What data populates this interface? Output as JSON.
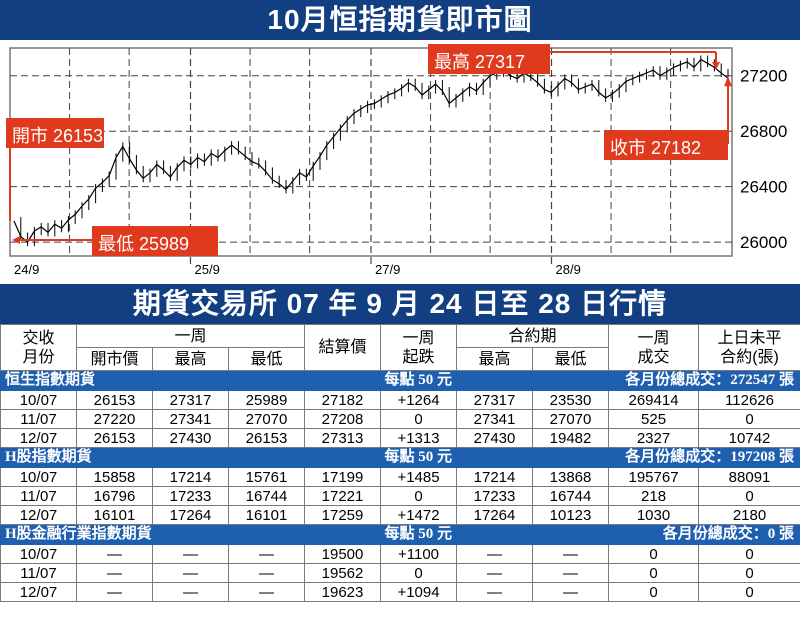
{
  "title": "10月恒指期貨即市圖",
  "table_title": "期貨交易所 07 年 9 月 24 日至 28 日行情",
  "chart_data": {
    "type": "line",
    "title": "10月恒指期貨即市圖",
    "x_ticks": [
      "24/9",
      "25/9",
      "27/9",
      "28/9"
    ],
    "y_ticks": [
      26000,
      26400,
      26800,
      27200
    ],
    "ylim": [
      25900,
      27400
    ],
    "grid": true,
    "series": [
      {
        "values": [
          26153,
          26040,
          26000,
          26080,
          26110,
          26070,
          26130,
          26100,
          26160,
          26200,
          26260,
          26310,
          26390,
          26430,
          26480,
          26610,
          26690,
          26600,
          26520,
          26460,
          26500,
          26560,
          26520,
          26470,
          26540,
          26590,
          26560,
          26610,
          26580,
          26640,
          26610,
          26660,
          26700,
          26660,
          26620,
          26580,
          26560,
          26510,
          26450,
          26420,
          26380,
          26440,
          26500,
          26470,
          26550,
          26620,
          26700,
          26760,
          26820,
          26880,
          26930,
          26960,
          26990,
          27000,
          27030,
          27060,
          27080,
          27110,
          27150,
          27120,
          27060,
          27100,
          27140,
          27090,
          27000,
          27040,
          27080,
          27120,
          27090,
          27150,
          27200,
          27220,
          27240,
          27200,
          27180,
          27220,
          27190,
          27150,
          27100,
          27080,
          27130,
          27180,
          27150,
          27100,
          27120,
          27140,
          27080,
          27040,
          27070,
          27110,
          27160,
          27180,
          27200,
          27220,
          27240,
          27200,
          27230,
          27260,
          27280,
          27300,
          27260,
          27317,
          27290,
          27260,
          27220,
          27182
        ]
      }
    ],
    "annotations": [
      {
        "label": "開市 26153",
        "value": 26153
      },
      {
        "label": "最低 25989",
        "value": 25989
      },
      {
        "label": "最高 27317",
        "value": 27317
      },
      {
        "label": "收市 27182",
        "value": 27182
      }
    ],
    "colors": {
      "line": "#000000",
      "annotation": "#e03a1e",
      "frame": "#113f82"
    }
  },
  "table": {
    "headers": {
      "month": "交收\n月份",
      "week": "一周",
      "open": "開市價",
      "high": "最高",
      "low": "最低",
      "settle": "結算價",
      "change": "一周\n起跌",
      "contract": "合約期",
      "c_high": "最高",
      "c_low": "最低",
      "volume": "一周\n成交",
      "oi": "上日未平\n合約(張)"
    },
    "sections": [
      {
        "name": "恒生指數期貨",
        "unit": "每點 50 元",
        "total": "各月份總成交：272547 張",
        "rows": [
          [
            "10/07",
            "26153",
            "27317",
            "25989",
            "27182",
            "+1264",
            "27317",
            "23530",
            "269414",
            "112626"
          ],
          [
            "11/07",
            "27220",
            "27341",
            "27070",
            "27208",
            "0",
            "27341",
            "27070",
            "525",
            "0"
          ],
          [
            "12/07",
            "26153",
            "27430",
            "26153",
            "27313",
            "+1313",
            "27430",
            "19482",
            "2327",
            "10742"
          ]
        ]
      },
      {
        "name": "H股指數期貨",
        "unit": "每點 50 元",
        "total": "各月份總成交：197208 張",
        "rows": [
          [
            "10/07",
            "15858",
            "17214",
            "15761",
            "17199",
            "+1485",
            "17214",
            "13868",
            "195767",
            "88091"
          ],
          [
            "11/07",
            "16796",
            "17233",
            "16744",
            "17221",
            "0",
            "17233",
            "16744",
            "218",
            "0"
          ],
          [
            "12/07",
            "16101",
            "17264",
            "16101",
            "17259",
            "+1472",
            "17264",
            "10123",
            "1030",
            "2180"
          ]
        ]
      },
      {
        "name": "H股金融行業指數期貨",
        "unit": "每點 50 元",
        "total": "各月份總成交：0 張",
        "rows": [
          [
            "10/07",
            "—",
            "—",
            "—",
            "19500",
            "+1100",
            "—",
            "—",
            "0",
            "0"
          ],
          [
            "11/07",
            "—",
            "—",
            "—",
            "19562",
            "0",
            "—",
            "—",
            "0",
            "0"
          ],
          [
            "12/07",
            "—",
            "—",
            "—",
            "19623",
            "+1094",
            "—",
            "—",
            "0",
            "0"
          ]
        ]
      }
    ]
  }
}
